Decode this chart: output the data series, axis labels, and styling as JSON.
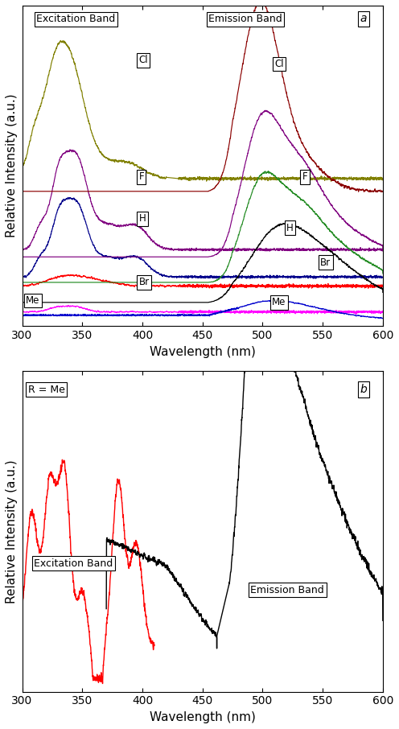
{
  "xlim": [
    300,
    600
  ],
  "xlabel": "Wavelength (nm)",
  "ylabel": "Relative Intensity (a.u.)",
  "panel_a_label": "a",
  "panel_b_label": "b",
  "panel_b_annotation": "R = Me",
  "panel_b_exc_label": "Excitation Band",
  "panel_b_em_label": "Emission Band",
  "exc_band_label": "Excitation Band",
  "em_band_label": "Emission Band",
  "colors": {
    "Cl_exc": "#808000",
    "F_exc": "#800080",
    "H_exc": "#00008B",
    "Br_exc": "#FF0000",
    "Me_exc": "#FF00FF",
    "Cl_em": "#8B0000",
    "F_em": "#800080",
    "H_em": "#228B22",
    "Br_em": "#000000",
    "Me_em": "#0000CD"
  },
  "background": "#ffffff",
  "spine_color": "#000000"
}
